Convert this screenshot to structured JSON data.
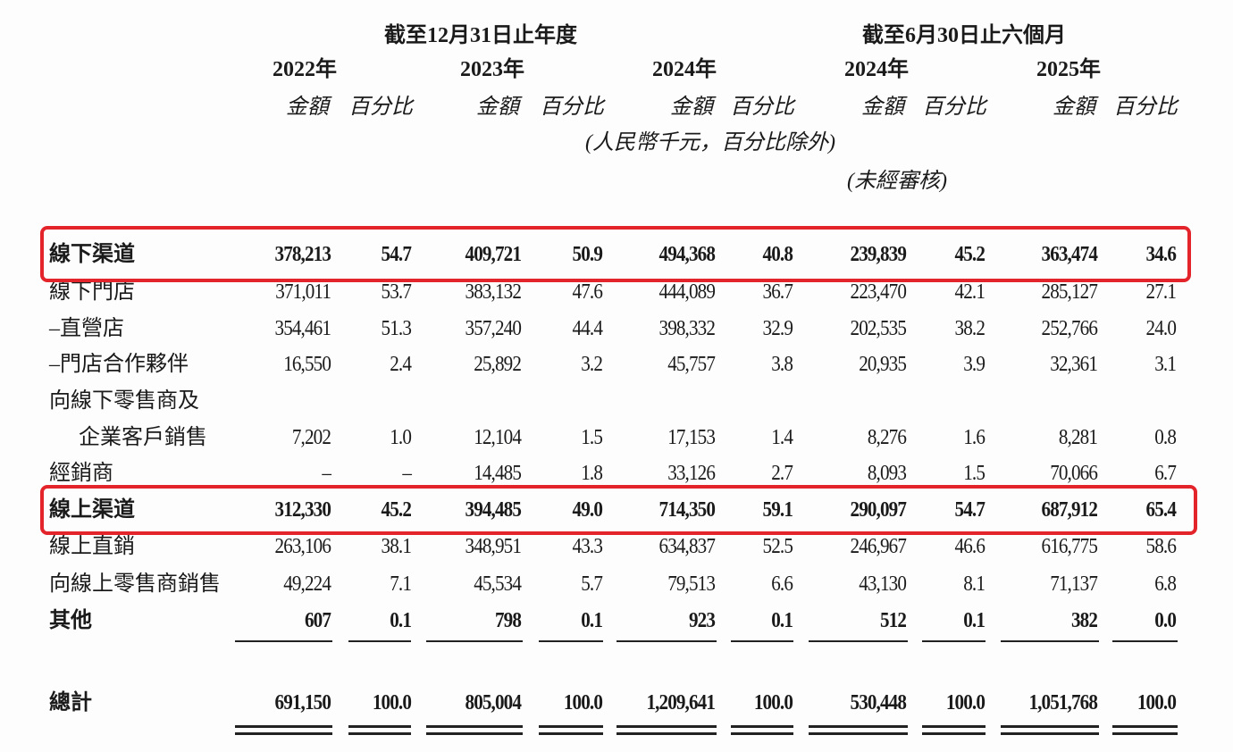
{
  "header": {
    "annual_period": "截至12月31日止年度",
    "interim_period": "截至6月30日止六個月",
    "years": [
      "2022年",
      "2023年",
      "2024年",
      "2024年",
      "2025年"
    ],
    "amount_label": "金額",
    "percent_label": "百分比",
    "unit_note": "(人民幣千元，百分比除外)",
    "unaudited_note": "(未經審核)"
  },
  "rows": [
    {
      "label": "線下渠道",
      "bold": true,
      "values": [
        "378,213",
        "54.7",
        "409,721",
        "50.9",
        "494,368",
        "40.8",
        "239,839",
        "45.2",
        "363,474",
        "34.6"
      ]
    },
    {
      "label": "線下門店",
      "values": [
        "371,011",
        "53.7",
        "383,132",
        "47.6",
        "444,089",
        "36.7",
        "223,470",
        "42.1",
        "285,127",
        "27.1"
      ]
    },
    {
      "label": "–直營店",
      "values": [
        "354,461",
        "51.3",
        "357,240",
        "44.4",
        "398,332",
        "32.9",
        "202,535",
        "38.2",
        "252,766",
        "24.0"
      ]
    },
    {
      "label": "–門店合作夥伴",
      "values": [
        "16,550",
        "2.4",
        "25,892",
        "3.2",
        "45,757",
        "3.8",
        "20,935",
        "3.9",
        "32,361",
        "3.1"
      ]
    },
    {
      "label": "向線下零售商及",
      "values": []
    },
    {
      "label": "企業客戶銷售",
      "indent": true,
      "values": [
        "7,202",
        "1.0",
        "12,104",
        "1.5",
        "17,153",
        "1.4",
        "8,276",
        "1.6",
        "8,281",
        "0.8"
      ]
    },
    {
      "label": "經銷商",
      "values": [
        "–",
        "–",
        "14,485",
        "1.8",
        "33,126",
        "2.7",
        "8,093",
        "1.5",
        "70,066",
        "6.7"
      ]
    },
    {
      "label": "線上渠道",
      "bold": true,
      "values": [
        "312,330",
        "45.2",
        "394,485",
        "49.0",
        "714,350",
        "59.1",
        "290,097",
        "54.7",
        "687,912",
        "65.4"
      ]
    },
    {
      "label": "線上直銷",
      "values": [
        "263,106",
        "38.1",
        "348,951",
        "43.3",
        "634,837",
        "52.5",
        "246,967",
        "46.6",
        "616,775",
        "58.6"
      ]
    },
    {
      "label": "向線上零售商銷售",
      "values": [
        "49,224",
        "7.1",
        "45,534",
        "5.7",
        "79,513",
        "6.6",
        "43,130",
        "8.1",
        "71,137",
        "6.8"
      ]
    },
    {
      "label": "其他",
      "bold": true,
      "values": [
        "607",
        "0.1",
        "798",
        "0.1",
        "923",
        "0.1",
        "512",
        "0.1",
        "382",
        "0.0"
      ]
    },
    {
      "label": "總計",
      "bold": true,
      "values": [
        "691,150",
        "100.0",
        "805,004",
        "100.0",
        "1,209,641",
        "100.0",
        "530,448",
        "100.0",
        "1,051,768",
        "100.0"
      ]
    }
  ],
  "colors": {
    "highlight": "#e3242b"
  }
}
